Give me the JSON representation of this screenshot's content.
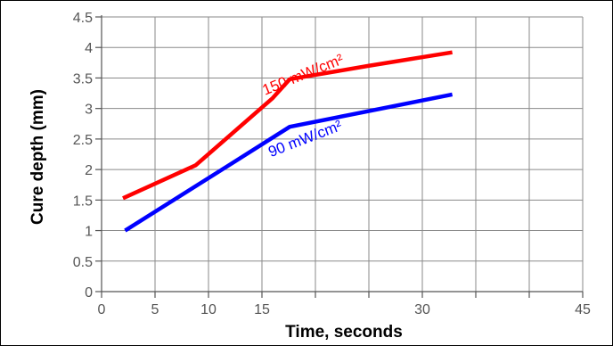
{
  "chart_data": {
    "type": "line",
    "xlabel": "Time, seconds",
    "ylabel": "Cure depth (mm)",
    "xlim": [
      0,
      45
    ],
    "ylim": [
      0,
      4.5
    ],
    "x_ticks": [
      0,
      5,
      10,
      15,
      20,
      25,
      30,
      35,
      40,
      45
    ],
    "x_tick_labels": [
      "0",
      "5",
      "10",
      "15",
      "",
      "",
      "30",
      "",
      "",
      "45"
    ],
    "y_ticks": [
      0,
      0.5,
      1,
      1.5,
      2,
      2.5,
      3,
      3.5,
      4,
      4.5
    ],
    "y_tick_labels": [
      "0",
      "0.5",
      "1",
      "1.5",
      "2",
      "2.5",
      "3",
      "3.5",
      "4",
      "4.5"
    ],
    "grid": true,
    "legend": "none",
    "series": [
      {
        "name": "150 mW/cm²",
        "color": "#ff0000",
        "x": [
          2,
          8.8,
          16,
          17.6,
          25,
          32.8
        ],
        "y": [
          1.53,
          2.07,
          3.17,
          3.48,
          3.7,
          3.92
        ]
      },
      {
        "name": "90 mW/cm²",
        "color": "#0000ff",
        "x": [
          2.2,
          12,
          17.6,
          32.8
        ],
        "y": [
          1.0,
          2.08,
          2.7,
          3.23
        ]
      }
    ]
  }
}
